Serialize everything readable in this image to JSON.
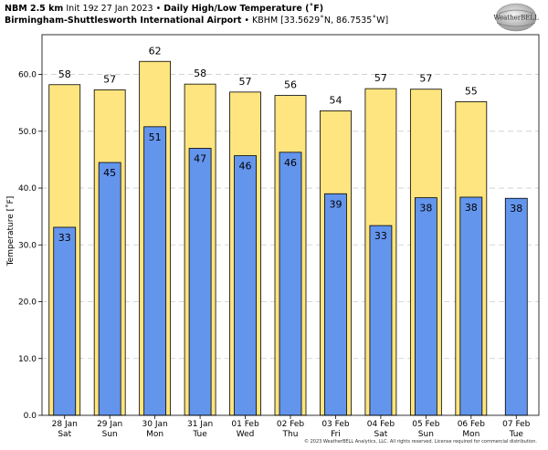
{
  "header": {
    "model": "NBM 2.5 km",
    "init": "Init 19z 27 Jan 2023",
    "sep": "•",
    "product": "Daily High/Low Temperature (˚F)",
    "station_name": "Birmingham-Shuttlesworth International Airport",
    "station_info": "KBHM [33.5629˚N, 86.7535˚W]"
  },
  "logo": {
    "text": "WeatherBELL",
    "icon": "weatherbell-globe-icon"
  },
  "copyright": "© 2023 WeatherBELL Analytics, LLC. All rights reserved. License required for commercial distribution.",
  "colors": {
    "high": "#ffe57f",
    "low": "#6495ed",
    "grid": "#cccccc",
    "plot_bg": "#ffffff"
  },
  "chart_data": {
    "type": "bar",
    "title": "Daily High/Low Temperature (˚F)",
    "ylabel": "Temperature [˚F]",
    "xlabel": "",
    "ylim": [
      0,
      67
    ],
    "yticks": [
      "0.0",
      "10.0",
      "20.0",
      "30.0",
      "40.0",
      "50.0",
      "60.0"
    ],
    "grid": true,
    "categories": [
      {
        "date": "28 Jan",
        "day": "Sat"
      },
      {
        "date": "29 Jan",
        "day": "Sun"
      },
      {
        "date": "30 Jan",
        "day": "Mon"
      },
      {
        "date": "31 Jan",
        "day": "Tue"
      },
      {
        "date": "01 Feb",
        "day": "Wed"
      },
      {
        "date": "02 Feb",
        "day": "Thu"
      },
      {
        "date": "03 Feb",
        "day": "Fri"
      },
      {
        "date": "04 Feb",
        "day": "Sat"
      },
      {
        "date": "05 Feb",
        "day": "Sun"
      },
      {
        "date": "06 Feb",
        "day": "Mon"
      },
      {
        "date": "07 Feb",
        "day": "Tue"
      }
    ],
    "series": [
      {
        "values": [
          58.2,
          57.3,
          62.3,
          58.3,
          56.9,
          56.3,
          53.6,
          57.5,
          57.4,
          55.2,
          null
        ],
        "labels": [
          "58",
          "57",
          "62",
          "58",
          "57",
          "56",
          "54",
          "57",
          "57",
          "55",
          ""
        ]
      },
      {
        "values": [
          33.1,
          44.5,
          50.8,
          47.0,
          45.7,
          46.3,
          39.0,
          33.4,
          38.3,
          38.4,
          38.2
        ],
        "labels": [
          "33",
          "45",
          "51",
          "47",
          "46",
          "46",
          "39",
          "33",
          "38",
          "38",
          "38"
        ]
      }
    ]
  }
}
